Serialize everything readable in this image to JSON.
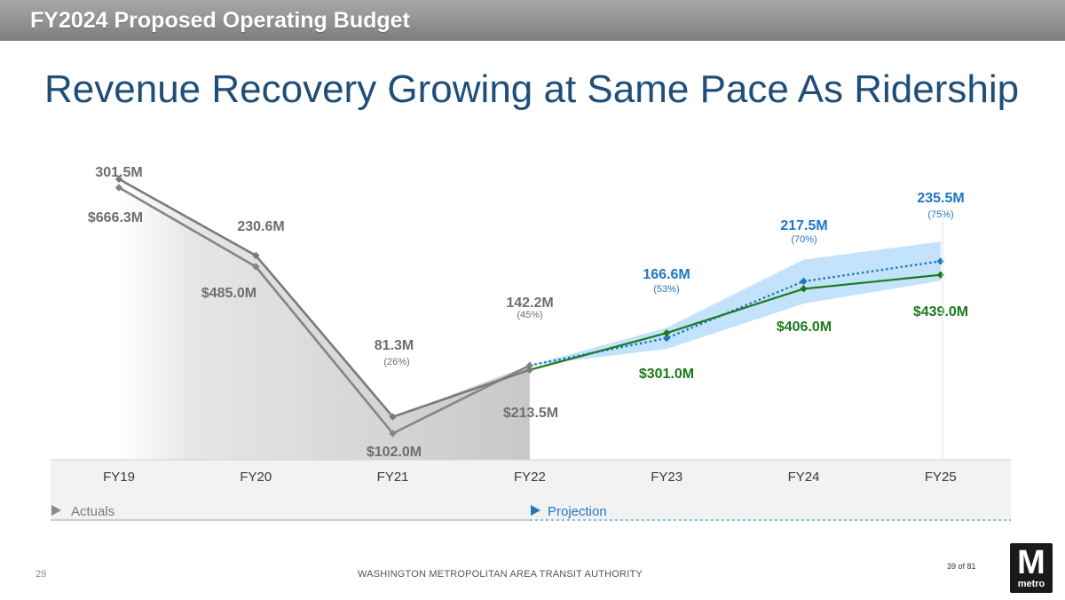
{
  "header": {
    "title": "FY2024 Proposed Operating Budget"
  },
  "slide": {
    "title": "Revenue Recovery Growing at Same Pace As Ridership"
  },
  "footer": {
    "page_number": "29",
    "organization": "WASHINGTON METROPOLITAN AREA TRANSIT AUTHORITY",
    "slide_counter": "39 of 81"
  },
  "logo": {
    "letter": "M",
    "word": "metro"
  },
  "colors": {
    "actual_ridership": "#858585",
    "actual_revenue": "#7a7a7a",
    "projected_ridership": "#1f77c4",
    "projected_revenue": "#1a7a1a",
    "projection_band": "#bcdffb",
    "title": "#1f4e79"
  },
  "chart_data": {
    "type": "line",
    "categories": [
      "FY19",
      "FY20",
      "FY21",
      "FY22",
      "FY23",
      "FY24",
      "FY25"
    ],
    "actual_range_end": 3,
    "series": [
      {
        "name": "",
        "values": [
          301.5,
          230.6,
          81.3,
          142.2,
          166.6,
          217.5,
          235.5
        ],
        "labels": [
          "301.5M",
          "230.6M",
          "81.3M",
          "142.2M",
          "166.6M",
          "217.5M",
          "235.5M"
        ],
        "percent_labels": [
          "",
          "",
          "(26%)",
          "(45%)",
          "(53%)",
          "(70%)",
          "(75%)"
        ],
        "band": {
          "start_index": 3,
          "low": [
            142.2,
            157,
            197.5,
            218
          ],
          "high": [
            142.2,
            176,
            237,
            253
          ]
        }
      },
      {
        "name": "",
        "values": [
          666.3,
          485.0,
          102.0,
          213.5,
          301.0,
          406.0,
          439.0
        ],
        "labels": [
          "$666.3M",
          "$485.0M",
          "$102.0M",
          "$213.5M",
          "$301.0M",
          "$406.0M",
          "$439.0M"
        ]
      }
    ],
    "legend_actuals": "Actuals",
    "legend_projection": "Projection",
    "grid": false
  }
}
